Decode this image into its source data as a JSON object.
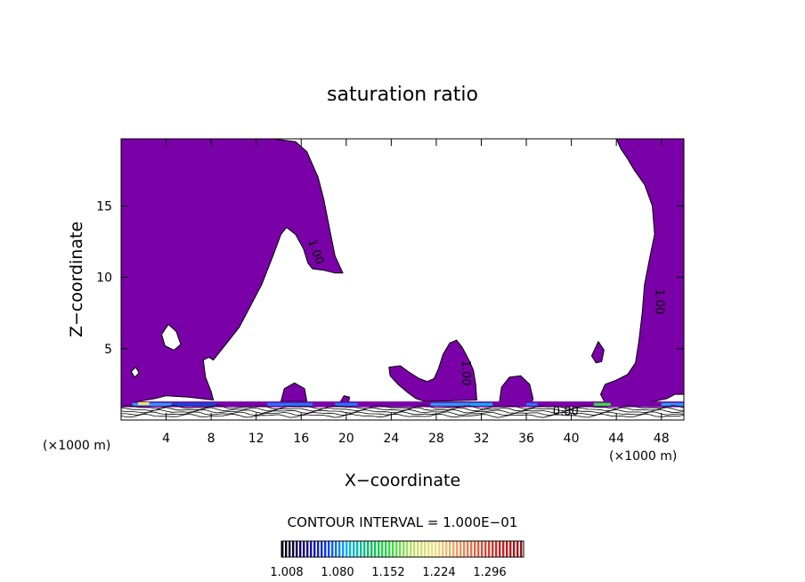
{
  "chart_data": {
    "type": "heatmap",
    "title": "saturation ratio",
    "xlabel": "X−coordinate",
    "ylabel": "Z−coordinate",
    "x_unit_left": "(×1000 m)",
    "x_unit_right": "(×1000 m)",
    "xlim": [
      0,
      50
    ],
    "ylim": [
      0,
      19.7
    ],
    "x_ticks": [
      4,
      8,
      12,
      16,
      20,
      24,
      28,
      32,
      36,
      40,
      44,
      48
    ],
    "y_ticks": [
      5,
      10,
      15
    ],
    "contour_interval_label": "CONTOUR INTERVAL = 1.000E−01",
    "contour_labels": [
      "1.00",
      "1.00",
      "1.00",
      "0.80"
    ],
    "colorbar": {
      "ticks": [
        "1.008",
        "1.080",
        "1.152",
        "1.224",
        "1.296"
      ],
      "colors": [
        "#000000",
        "#1a0080",
        "#0033ff",
        "#00b4ff",
        "#00c060",
        "#30e040",
        "#c0e060",
        "#f0e080",
        "#f0a060",
        "#e06040",
        "#d02020",
        "#a01010"
      ]
    },
    "fill_color": "#7a00a8",
    "regions": [
      {
        "name": "upper-left-plume",
        "points": [
          [
            0,
            19.7
          ],
          [
            13.5,
            19.7
          ],
          [
            15.5,
            19.5
          ],
          [
            16.5,
            18.8
          ],
          [
            17.5,
            17
          ],
          [
            18,
            15.5
          ],
          [
            18.5,
            13.5
          ],
          [
            19,
            11.5
          ],
          [
            19.7,
            10.3
          ],
          [
            19,
            10.3
          ],
          [
            18,
            10.5
          ],
          [
            17,
            10.6
          ],
          [
            16.6,
            11
          ],
          [
            16.2,
            12
          ],
          [
            15.5,
            13
          ],
          [
            14.7,
            13.5
          ],
          [
            14.2,
            13
          ],
          [
            13.5,
            11.5
          ],
          [
            12.5,
            9.5
          ],
          [
            11.5,
            8
          ],
          [
            10.5,
            6.5
          ],
          [
            9.5,
            5.5
          ],
          [
            8.8,
            4.8
          ],
          [
            8.2,
            4.2
          ],
          [
            7.8,
            4.4
          ],
          [
            7.3,
            4.2
          ],
          [
            7.5,
            3
          ],
          [
            8,
            2
          ],
          [
            8.2,
            1.4
          ],
          [
            6,
            1.6
          ],
          [
            4,
            1.7
          ],
          [
            3,
            1.5
          ],
          [
            1.5,
            1.3
          ],
          [
            0,
            1.1
          ]
        ]
      },
      {
        "name": "right-column",
        "points": [
          [
            44,
            19.7
          ],
          [
            50,
            19.7
          ],
          [
            50,
            1.8
          ],
          [
            49.2,
            1.8
          ],
          [
            48.5,
            1.5
          ],
          [
            47.3,
            1.3
          ],
          [
            46,
            1.1
          ],
          [
            44.2,
            1.1
          ],
          [
            43,
            1.2
          ],
          [
            42.6,
            1.8
          ],
          [
            43,
            2.5
          ],
          [
            44,
            2.8
          ],
          [
            45,
            3.2
          ],
          [
            45.7,
            4
          ],
          [
            46,
            5.5
          ],
          [
            46.3,
            7.5
          ],
          [
            46.5,
            9.5
          ],
          [
            47,
            11.5
          ],
          [
            47.4,
            13
          ],
          [
            47.2,
            15
          ],
          [
            46.5,
            16.5
          ],
          [
            45.6,
            17.5
          ],
          [
            45,
            18.3
          ],
          [
            44.4,
            19
          ]
        ]
      },
      {
        "name": "mid-cluster",
        "points": [
          [
            23.8,
            3.7
          ],
          [
            24.8,
            3.8
          ],
          [
            25.5,
            3.4
          ],
          [
            26.5,
            2.9
          ],
          [
            27.2,
            2.7
          ],
          [
            27.8,
            2.9
          ],
          [
            28.2,
            3.6
          ],
          [
            28.6,
            4.6
          ],
          [
            29.2,
            5.4
          ],
          [
            29.8,
            5.6
          ],
          [
            30.3,
            5.1
          ],
          [
            30.9,
            4.2
          ],
          [
            31.3,
            3.5
          ],
          [
            31.5,
            2.5
          ],
          [
            31.6,
            1.4
          ],
          [
            27,
            1.3
          ],
          [
            26.2,
            1.5
          ],
          [
            25.5,
            1.9
          ],
          [
            24.6,
            2.5
          ],
          [
            23.9,
            3.1
          ]
        ]
      },
      {
        "name": "blob-35",
        "points": [
          [
            33.6,
            1.2
          ],
          [
            33.8,
            2.3
          ],
          [
            34.5,
            3
          ],
          [
            35.5,
            3.1
          ],
          [
            36.3,
            2.5
          ],
          [
            36.6,
            1.5
          ],
          [
            36.5,
            1.2
          ]
        ]
      },
      {
        "name": "blob-42",
        "points": [
          [
            41.8,
            4.5
          ],
          [
            42.4,
            5.5
          ],
          [
            42.9,
            4.9
          ],
          [
            42.7,
            4.1
          ],
          [
            42.2,
            4
          ]
        ]
      },
      {
        "name": "blob-14",
        "points": [
          [
            14.2,
            1.3
          ],
          [
            14.5,
            2.2
          ],
          [
            15.4,
            2.6
          ],
          [
            16.3,
            2.2
          ],
          [
            16.5,
            1.3
          ]
        ]
      },
      {
        "name": "blob-19",
        "points": [
          [
            19.5,
            1.3
          ],
          [
            19.8,
            1.7
          ],
          [
            20.3,
            1.6
          ],
          [
            20.2,
            1.2
          ]
        ]
      },
      {
        "name": "hole-4",
        "hole": true,
        "points": [
          [
            3.6,
            6
          ],
          [
            4.2,
            6.7
          ],
          [
            4.9,
            6.2
          ],
          [
            5.3,
            5.3
          ],
          [
            4.7,
            4.9
          ],
          [
            3.9,
            5.2
          ]
        ]
      },
      {
        "name": "hole-1",
        "hole": true,
        "points": [
          [
            0.9,
            3.4
          ],
          [
            1.3,
            3.7
          ],
          [
            1.6,
            3.3
          ],
          [
            1.2,
            3
          ]
        ]
      }
    ]
  }
}
